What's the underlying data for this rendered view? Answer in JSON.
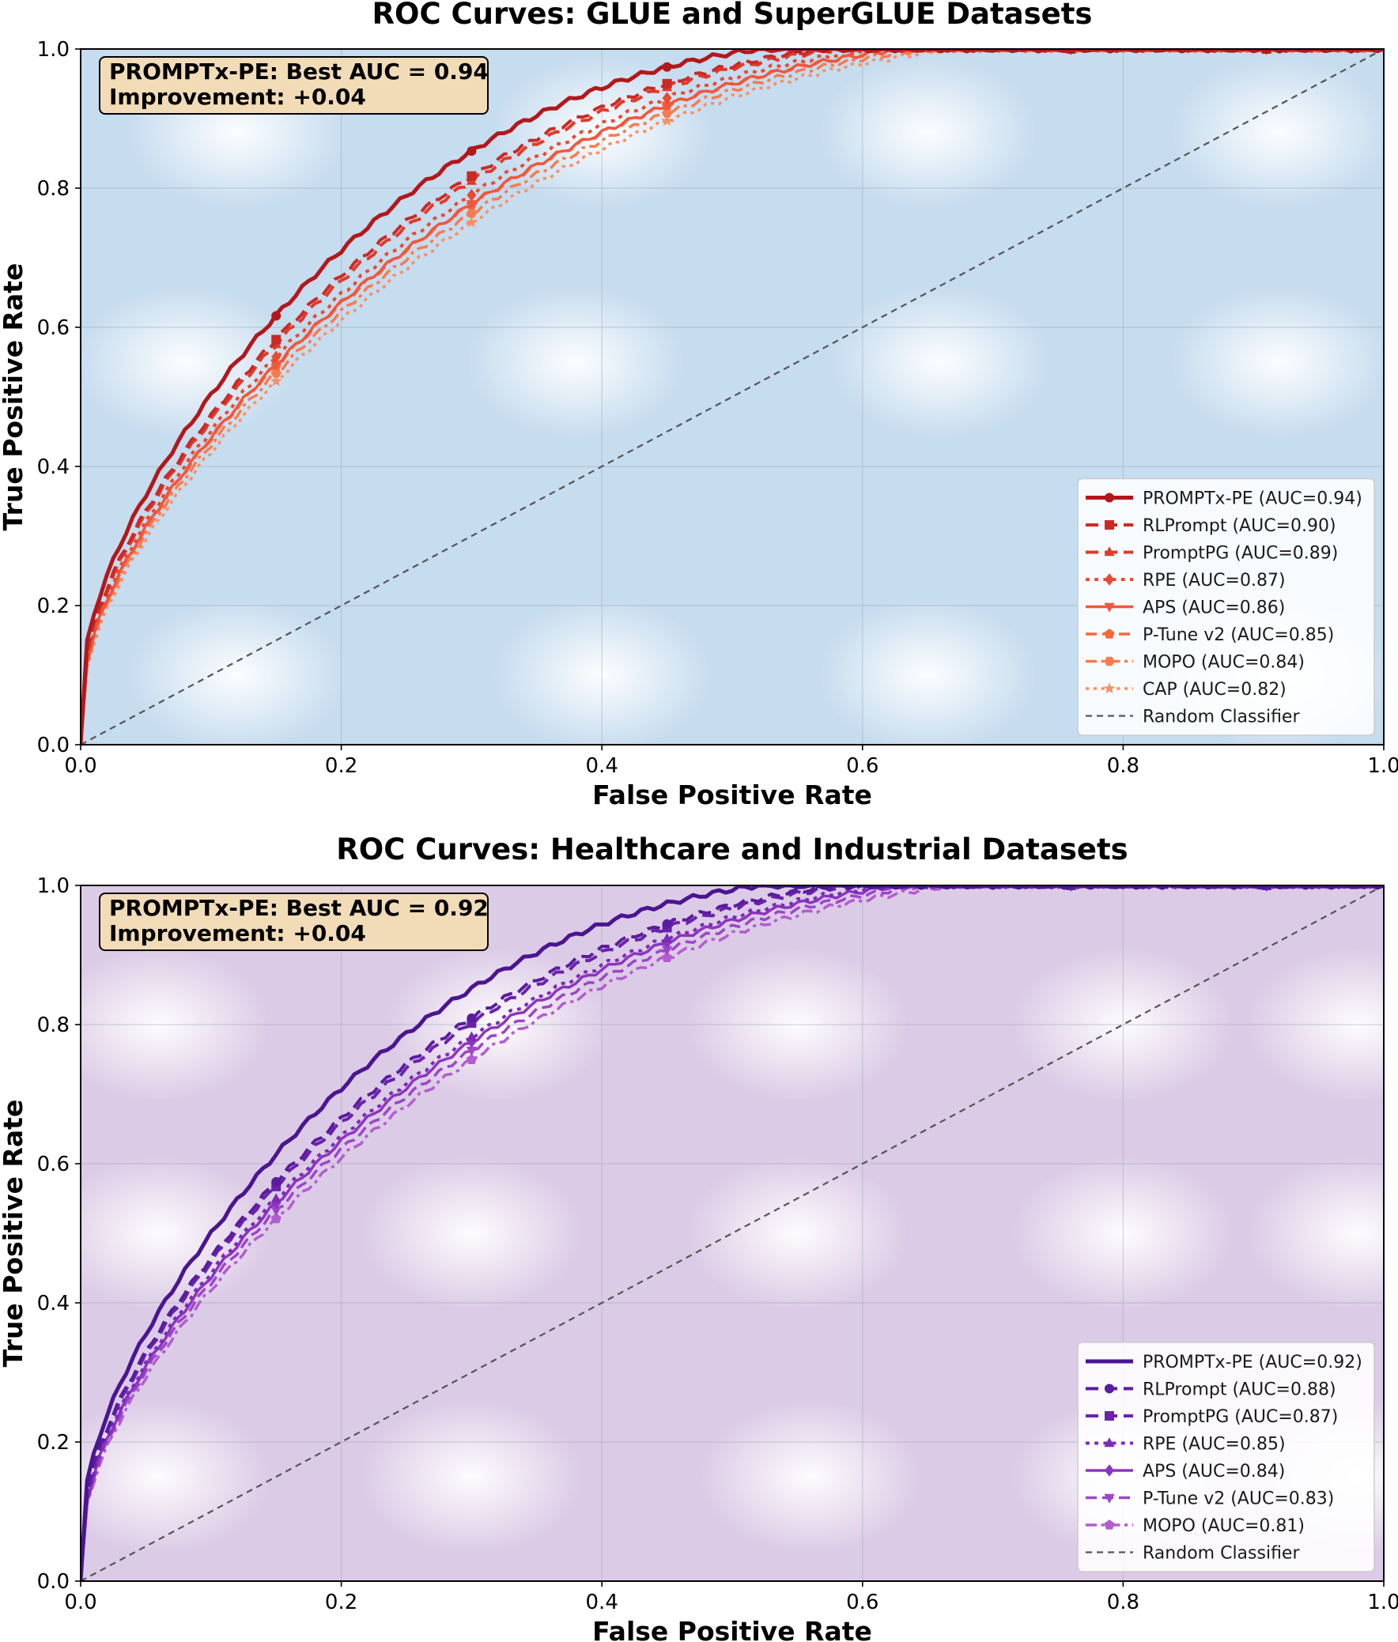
{
  "chart_data": [
    {
      "type": "line",
      "title": "ROC Curves: GLUE and SuperGLUE Datasets",
      "xlabel": "False Positive Rate",
      "ylabel": "True Positive Rate",
      "xlim": [
        0.0,
        1.0
      ],
      "ylim": [
        0.0,
        1.0
      ],
      "xticks": [
        "0.0",
        "0.2",
        "0.4",
        "0.6",
        "0.8",
        "1.0"
      ],
      "yticks": [
        "0.0",
        "0.2",
        "0.4",
        "0.6",
        "0.8",
        "1.0"
      ],
      "grid": true,
      "legend_position": "lower-right",
      "background_tint": "#c6dcef",
      "annotation": {
        "line1": "PROMPTx-PE: Best AUC = 0.94",
        "line2": "Improvement: +0.04",
        "bg": "#f2dcb8"
      },
      "series": [
        {
          "name": "PROMPTx-PE",
          "legend_label": "PROMPTx-PE (AUC=0.94)",
          "auc": 0.94,
          "color": "#b2181b",
          "dash": "solid",
          "width": 5,
          "marker": "circle",
          "reach_one_at": 0.52
        },
        {
          "name": "RLPrompt",
          "legend_label": "RLPrompt (AUC=0.90)",
          "auc": 0.9,
          "color": "#cb2a24",
          "dash": "dashed",
          "width": 4,
          "marker": "square",
          "reach_one_at": 0.57
        },
        {
          "name": "PromptPG",
          "legend_label": "PromptPG (AUC=0.89)",
          "auc": 0.89,
          "color": "#de3b2b",
          "dash": "dashed",
          "width": 4,
          "marker": "triangle-up",
          "reach_one_at": 0.58
        },
        {
          "name": "RPE",
          "legend_label": "RPE (AUC=0.87)",
          "auc": 0.87,
          "color": "#e84a32",
          "dash": "dotted",
          "width": 4,
          "marker": "diamond",
          "reach_one_at": 0.61
        },
        {
          "name": "APS",
          "legend_label": "APS (AUC=0.86)",
          "auc": 0.86,
          "color": "#f0573c",
          "dash": "solid",
          "width": 3.5,
          "marker": "triangle-down",
          "reach_one_at": 0.63
        },
        {
          "name": "P-Tune v2",
          "legend_label": "P-Tune v2 (AUC=0.85)",
          "auc": 0.85,
          "color": "#f6683f",
          "dash": "dashed",
          "width": 3.5,
          "marker": "pentagon",
          "reach_one_at": 0.63
        },
        {
          "name": "MOPO",
          "legend_label": "MOPO (AUC=0.84)",
          "auc": 0.84,
          "color": "#f77b4e",
          "dash": "dashdot",
          "width": 3.5,
          "marker": "hexagon",
          "reach_one_at": 0.65
        },
        {
          "name": "CAP",
          "legend_label": "CAP (AUC=0.82)",
          "auc": 0.82,
          "color": "#f98f63",
          "dash": "dotted",
          "width": 3.5,
          "marker": "star",
          "reach_one_at": 0.67
        }
      ],
      "baseline": {
        "legend_label": "Random Classifier",
        "x": [
          0,
          1
        ],
        "y": [
          0,
          1
        ],
        "color": "#555555"
      }
    },
    {
      "type": "line",
      "title": "ROC Curves: Healthcare and Industrial Datasets",
      "xlabel": "False Positive Rate",
      "ylabel": "True Positive Rate",
      "xlim": [
        0.0,
        1.0
      ],
      "ylim": [
        0.0,
        1.0
      ],
      "xticks": [
        "0.0",
        "0.2",
        "0.4",
        "0.6",
        "0.8",
        "1.0"
      ],
      "yticks": [
        "0.0",
        "0.2",
        "0.4",
        "0.6",
        "0.8",
        "1.0"
      ],
      "grid": true,
      "legend_position": "lower-right",
      "background_tint": "#dccbe6",
      "annotation": {
        "line1": "PROMPTx-PE: Best AUC = 0.92",
        "line2": "Improvement: +0.04",
        "bg": "#f2dcb8"
      },
      "series": [
        {
          "name": "PROMPTx-PE",
          "legend_label": "PROMPTx-PE (AUC=0.92)",
          "auc": 0.92,
          "color": "#4b1591",
          "dash": "solid",
          "width": 5,
          "marker": "none",
          "reach_one_at": 0.52
        },
        {
          "name": "RLPrompt",
          "legend_label": "RLPrompt (AUC=0.88)",
          "auc": 0.88,
          "color": "#5b1c9f",
          "dash": "dashed",
          "width": 4,
          "marker": "circle",
          "reach_one_at": 0.58
        },
        {
          "name": "PromptPG",
          "legend_label": "PromptPG (AUC=0.87)",
          "auc": 0.87,
          "color": "#6a22ab",
          "dash": "dashed",
          "width": 4,
          "marker": "square",
          "reach_one_at": 0.59
        },
        {
          "name": "RPE",
          "legend_label": "RPE (AUC=0.85)",
          "auc": 0.85,
          "color": "#7b2bb6",
          "dash": "dotted",
          "width": 4,
          "marker": "triangle-up",
          "reach_one_at": 0.62
        },
        {
          "name": "APS",
          "legend_label": "APS (AUC=0.84)",
          "auc": 0.84,
          "color": "#8c34bf",
          "dash": "solid",
          "width": 3.5,
          "marker": "diamond",
          "reach_one_at": 0.63
        },
        {
          "name": "P-Tune v2",
          "legend_label": "P-Tune v2 (AUC=0.83)",
          "auc": 0.83,
          "color": "#9d45c8",
          "dash": "dashed",
          "width": 3.5,
          "marker": "triangle-down",
          "reach_one_at": 0.65
        },
        {
          "name": "MOPO",
          "legend_label": "MOPO (AUC=0.81)",
          "auc": 0.81,
          "color": "#b35ccf",
          "dash": "dashdot",
          "width": 3.5,
          "marker": "pentagon",
          "reach_one_at": 0.67
        }
      ],
      "baseline": {
        "legend_label": "Random Classifier",
        "x": [
          0,
          1
        ],
        "y": [
          0,
          1
        ],
        "color": "#555555"
      }
    }
  ]
}
